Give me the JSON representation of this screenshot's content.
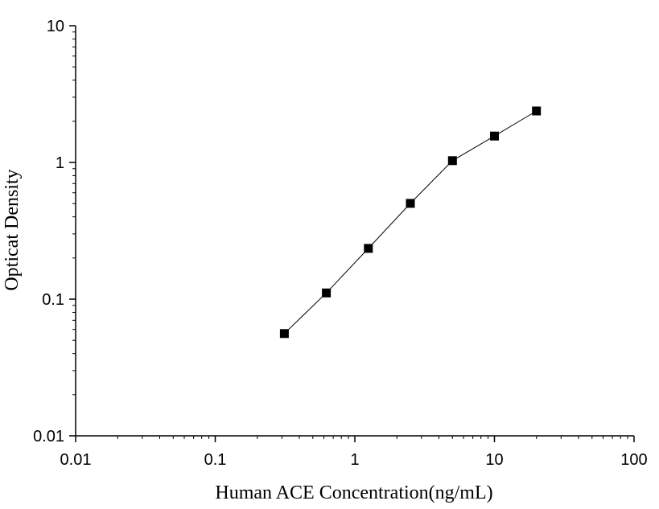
{
  "chart_data": {
    "type": "scatter",
    "title": "",
    "xlabel": "Human ACE   Concentration(ng/mL)",
    "ylabel": "Opticat Density",
    "xscale": "log",
    "yscale": "log",
    "xlim": [
      0.01,
      100
    ],
    "ylim": [
      0.01,
      10
    ],
    "x_ticks": [
      {
        "value": 0.01,
        "label": "0.01"
      },
      {
        "value": 0.1,
        "label": "0.1"
      },
      {
        "value": 1,
        "label": "1"
      },
      {
        "value": 10,
        "label": "10"
      },
      {
        "value": 100,
        "label": "100"
      }
    ],
    "y_ticks": [
      {
        "value": 0.01,
        "label": "0.01"
      },
      {
        "value": 0.1,
        "label": "0.1"
      },
      {
        "value": 1,
        "label": "1"
      },
      {
        "value": 10,
        "label": "10"
      }
    ],
    "grid": false,
    "legend": "none",
    "series": [
      {
        "marker": "square",
        "color": "#000000",
        "connected": true,
        "x": [
          0.3125,
          0.625,
          1.25,
          2.5,
          5,
          10,
          20
        ],
        "y": [
          0.056,
          0.111,
          0.235,
          0.502,
          1.03,
          1.56,
          2.38
        ]
      }
    ]
  }
}
